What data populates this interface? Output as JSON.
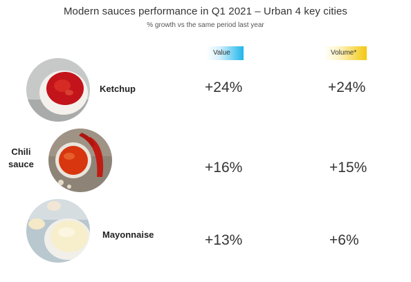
{
  "chart_data": {
    "type": "table",
    "title": "Modern sauces performance in Q1 2021 – Urban 4 key cities",
    "subtitle": "% growth vs the same period last year",
    "columns": [
      {
        "label": "Value",
        "color": "#1fb5ea"
      },
      {
        "label": "Volume*",
        "color": "#f3c810"
      }
    ],
    "rows": [
      {
        "label": "Ketchup",
        "value": "+24%",
        "volume": "+24%",
        "image": "ketchup-bowl"
      },
      {
        "label_lines": [
          "Chili",
          "sauce"
        ],
        "value": "+16%",
        "volume": "+15%",
        "image": "chili-sauce-bowl"
      },
      {
        "label": "Mayonnaise",
        "value": "+13%",
        "volume": "+6%",
        "image": "mayonnaise-bowl"
      }
    ]
  }
}
